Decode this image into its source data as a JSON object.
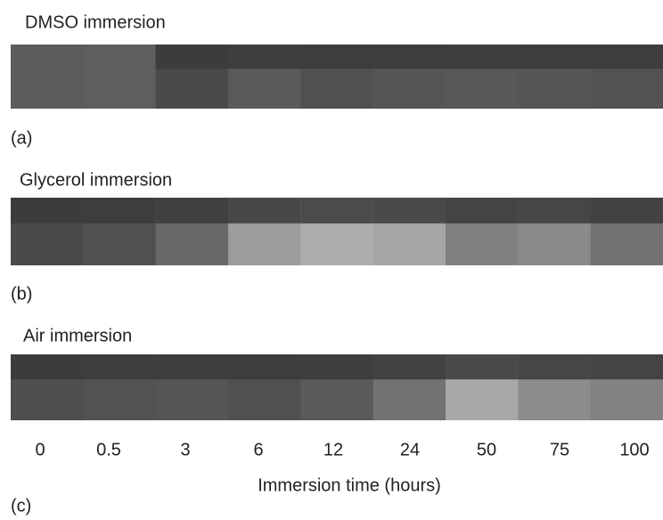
{
  "panels": [
    {
      "title": "DMSO immersion",
      "label": "(a)"
    },
    {
      "title": "Glycerol immersion",
      "label": "(b)"
    },
    {
      "title": "Air immersion",
      "label": "(c)"
    }
  ],
  "x_axis": {
    "ticks": [
      0,
      0.5,
      3,
      6,
      12,
      24,
      50,
      75,
      100
    ],
    "label": "Immersion time (hours)"
  }
}
